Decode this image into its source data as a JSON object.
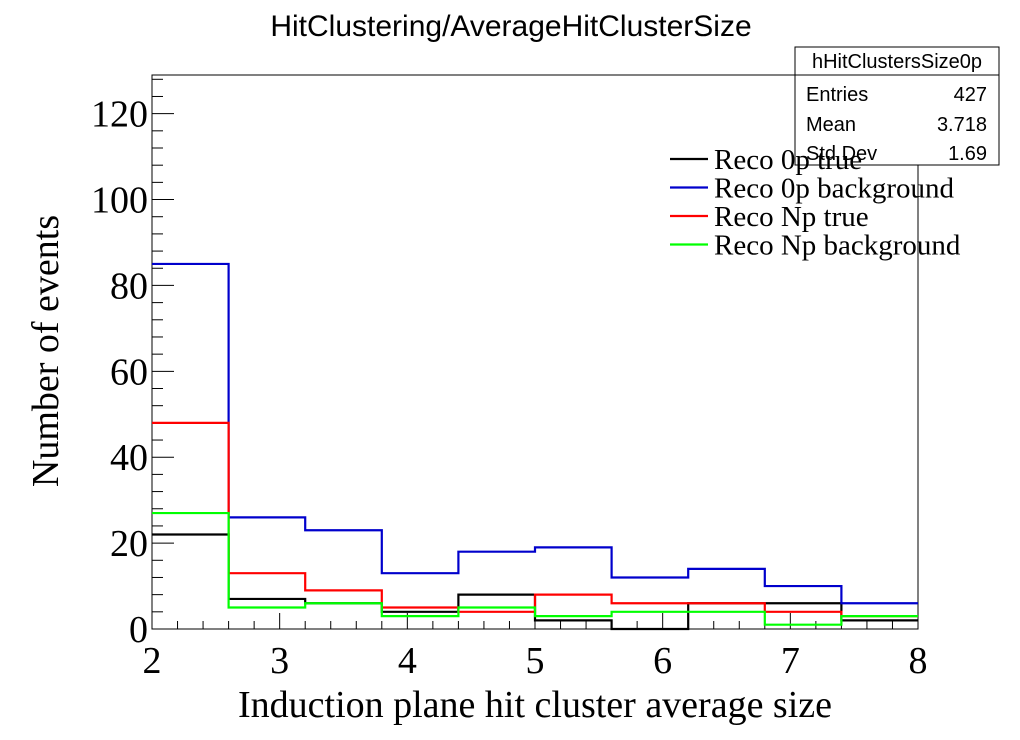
{
  "chart_data": {
    "type": "histogram",
    "title": "HitClustering/AverageHitClusterSize",
    "xlabel": "Induction plane hit cluster average size",
    "ylabel": "Number of events",
    "xlim": [
      2,
      8
    ],
    "ylim": [
      0,
      129
    ],
    "x_ticks": [
      2,
      3,
      4,
      5,
      6,
      7,
      8
    ],
    "y_ticks": [
      0,
      20,
      40,
      60,
      80,
      100,
      120
    ],
    "bin_edges": [
      2.0,
      2.6,
      3.2,
      3.8,
      4.4,
      5.0,
      5.6,
      6.2,
      6.8,
      7.4,
      8.0
    ],
    "grid": false,
    "legend_position": "top-right",
    "series": [
      {
        "name": "Reco 0p true",
        "color": "#000000",
        "values": [
          22,
          7,
          6,
          4,
          8,
          2,
          0,
          6,
          6,
          2
        ]
      },
      {
        "name": "Reco 0p background",
        "color": "#0000cc",
        "values": [
          85,
          26,
          23,
          13,
          18,
          19,
          12,
          14,
          10,
          6
        ]
      },
      {
        "name": "Reco Np true",
        "color": "#ff0000",
        "values": [
          48,
          13,
          9,
          5,
          4,
          8,
          6,
          6,
          4,
          3
        ]
      },
      {
        "name": "Reco Np background",
        "color": "#00ff00",
        "values": [
          27,
          5,
          6,
          3,
          5,
          3,
          4,
          4,
          1,
          3
        ]
      }
    ],
    "stats_box": {
      "name": "hHitClustersSize0p",
      "rows": [
        {
          "label": "Entries",
          "value": "427"
        },
        {
          "label": "Mean",
          "value": "3.718"
        },
        {
          "label": "Std Dev",
          "value": "1.69"
        }
      ]
    }
  }
}
